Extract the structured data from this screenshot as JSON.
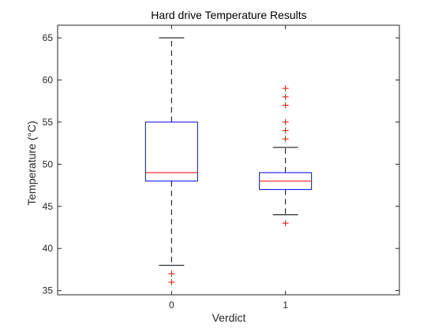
{
  "chart_data": {
    "type": "boxplot",
    "title": "Hard drive Temperature Results",
    "xlabel": "Verdict",
    "ylabel": "Temperature (°C)",
    "categories": [
      "0",
      "1"
    ],
    "ylim": [
      34.5,
      66.5
    ],
    "yticks": [
      35,
      40,
      45,
      50,
      55,
      60,
      65
    ],
    "grid": false,
    "boxes": [
      {
        "category": "0",
        "whisker_low": 38,
        "q1": 48,
        "median": 49,
        "q3": 55,
        "whisker_high": 65,
        "outliers": [
          36,
          37
        ]
      },
      {
        "category": "1",
        "whisker_low": 44,
        "q1": 47,
        "median": 48,
        "q3": 49,
        "whisker_high": 52,
        "outliers": [
          43,
          53,
          54,
          55,
          57,
          58,
          59
        ]
      }
    ],
    "colors": {
      "box": "#0000ff",
      "median": "#ff0000",
      "outlier": "#ff0000",
      "whisker": "#000000",
      "axes": "#262626"
    }
  }
}
